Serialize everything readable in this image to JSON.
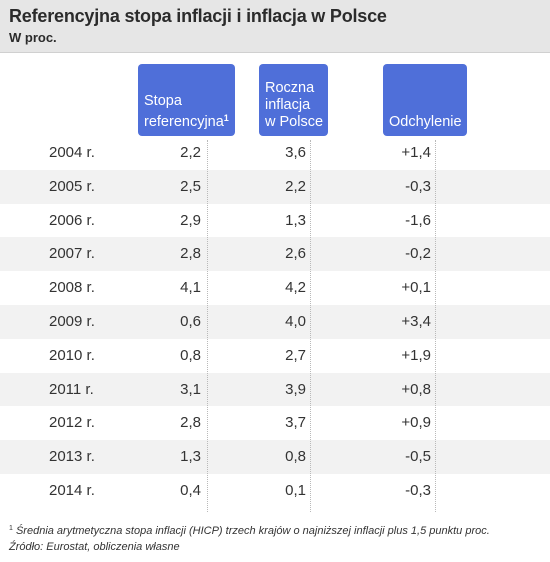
{
  "header": {
    "title": "Referencyjna stopa inflacji i inflacja w Polsce",
    "subtitle": "W proc."
  },
  "columns": {
    "reference_rate": "Stopa referencyjna",
    "reference_rate_mark": "1",
    "annual_inflation": "Roczna inflacja w Polsce",
    "deviation": "Odchylenie"
  },
  "footer": {
    "footnote_mark": "1",
    "footnote": " Średnia arytmetyczna stopa inflacji (HICP) trzech krajów o najniższej inflacji plus 1,5 punktu proc.",
    "source": "Źródło: Eurostat, obliczenia własne"
  },
  "colors": {
    "header_bg": "#e6e6e6",
    "column_header_bg": "#4f6fd9",
    "stripe": "#f2f2f2"
  },
  "chart_data": {
    "type": "table",
    "title": "Referencyjna stopa inflacji i inflacja w Polsce",
    "subtitle": "W proc.",
    "columns": [
      "Stopa referencyjna¹",
      "Roczna inflacja w Polsce",
      "Odchylenie"
    ],
    "rows": [
      {
        "year": "2004 r.",
        "reference": "2,2",
        "inflation": "3,6",
        "deviation": "+1,4"
      },
      {
        "year": "2005 r.",
        "reference": "2,5",
        "inflation": "2,2",
        "deviation": "-0,3"
      },
      {
        "year": "2006 r.",
        "reference": "2,9",
        "inflation": "1,3",
        "deviation": "-1,6"
      },
      {
        "year": "2007 r.",
        "reference": "2,8",
        "inflation": "2,6",
        "deviation": "-0,2"
      },
      {
        "year": "2008 r.",
        "reference": "4,1",
        "inflation": "4,2",
        "deviation": "+0,1"
      },
      {
        "year": "2009 r.",
        "reference": "0,6",
        "inflation": "4,0",
        "deviation": "+3,4"
      },
      {
        "year": "2010 r.",
        "reference": "0,8",
        "inflation": "2,7",
        "deviation": "+1,9"
      },
      {
        "year": "2011 r.",
        "reference": "3,1",
        "inflation": "3,9",
        "deviation": "+0,8"
      },
      {
        "year": "2012 r.",
        "reference": "2,8",
        "inflation": "3,7",
        "deviation": "+0,9"
      },
      {
        "year": "2013 r.",
        "reference": "1,3",
        "inflation": "0,8",
        "deviation": "-0,5"
      },
      {
        "year": "2014 r.",
        "reference": "0,4",
        "inflation": "0,1",
        "deviation": "-0,3"
      }
    ]
  }
}
